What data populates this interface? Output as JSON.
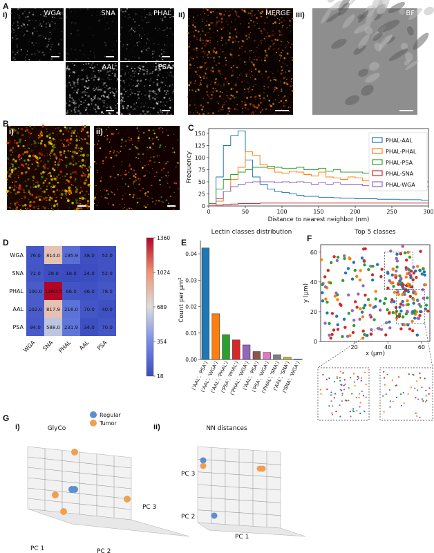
{
  "panel_labels": {
    "A": "A",
    "B": "B",
    "C": "C",
    "D": "D",
    "E": "E",
    "F": "F",
    "G": "G"
  },
  "sub_labels": {
    "a_i": "i)",
    "a_ii": "ii)",
    "a_iii": "iii)",
    "b_i": "i)",
    "b_ii": "ii)",
    "g_i": "i)",
    "g_ii": "ii)"
  },
  "panel_a": {
    "channels": [
      "WGA",
      "SNA",
      "PHAL",
      "AAL",
      "PSA"
    ],
    "merge": "MERGE",
    "bf": "BF"
  },
  "colors": {
    "blue": "#1f77b4",
    "orange": "#ff7f0e",
    "green": "#2ca02c",
    "red": "#d62728",
    "purple": "#9467bd",
    "brown": "#8c564b",
    "pink": "#e377c2",
    "gray": "#7f7f7f",
    "regular": "#5b8fd0",
    "tumor": "#f0a050"
  },
  "chart_data": [
    {
      "id": "C",
      "type": "line",
      "xlabel": "Distance to nearest neighbor (nm)",
      "ylabel": "Frequency",
      "xlim": [
        0,
        300
      ],
      "ylim": [
        0,
        160
      ],
      "xticks": [
        0,
        50,
        100,
        150,
        200,
        250,
        300
      ],
      "yticks": [
        0,
        25,
        50,
        75,
        100,
        125,
        150
      ],
      "legend_position": "right",
      "x": [
        5,
        15,
        25,
        35,
        45,
        55,
        65,
        75,
        85,
        95,
        105,
        115,
        125,
        135,
        145,
        155,
        165,
        175,
        185,
        195,
        205,
        215,
        225,
        235,
        245,
        255,
        265,
        275,
        285,
        295
      ],
      "series": [
        {
          "name": "PHAL-AAL",
          "color": "#1f77b4",
          "values": [
            5,
            60,
            125,
            145,
            155,
            95,
            60,
            45,
            35,
            30,
            28,
            25,
            22,
            20,
            20,
            18,
            18,
            17,
            16,
            16,
            15,
            15,
            15,
            14,
            14,
            14,
            13,
            13,
            13,
            12
          ]
        },
        {
          "name": "PHAL-PHAL",
          "color": "#ff7f0e",
          "values": [
            0,
            10,
            30,
            55,
            80,
            112,
            105,
            85,
            78,
            70,
            68,
            72,
            70,
            65,
            62,
            70,
            60,
            58,
            55,
            60,
            58,
            52,
            55,
            50,
            60,
            55,
            50,
            52,
            55,
            50
          ]
        },
        {
          "name": "PHAL-PSA",
          "color": "#2ca02c",
          "values": [
            5,
            35,
            55,
            65,
            70,
            75,
            80,
            80,
            82,
            80,
            78,
            78,
            80,
            75,
            75,
            78,
            72,
            75,
            70,
            70,
            70,
            68,
            65,
            62,
            60,
            55,
            55,
            52,
            50,
            50
          ]
        },
        {
          "name": "PHAL-SNA",
          "color": "#d62728",
          "values": [
            0,
            2,
            3,
            4,
            5,
            5,
            5,
            6,
            6,
            6,
            6,
            6,
            6,
            6,
            6,
            6,
            6,
            6,
            6,
            6,
            6,
            6,
            6,
            6,
            6,
            6,
            6,
            6,
            6,
            6
          ]
        },
        {
          "name": "PHAL-WGA",
          "color": "#9467bd",
          "values": [
            2,
            15,
            30,
            40,
            45,
            48,
            50,
            50,
            50,
            48,
            50,
            48,
            50,
            48,
            45,
            48,
            45,
            48,
            45,
            45,
            45,
            42,
            45,
            42,
            40,
            42,
            45,
            40,
            42,
            40
          ]
        }
      ]
    },
    {
      "id": "D",
      "type": "heatmap",
      "rows": [
        "WGA",
        "SNA",
        "PHAL",
        "AAL",
        "PSA"
      ],
      "cols": [
        "WGA",
        "SNA",
        "PHAL",
        "AAL",
        "PSA"
      ],
      "values": [
        [
          76.0,
          814.0,
          195.9,
          38.0,
          52.0
        ],
        [
          72.0,
          28.0,
          18.0,
          24.0,
          52.0
        ],
        [
          100.0,
          1360.0,
          66.0,
          46.0,
          78.0
        ],
        [
          102.0,
          817.9,
          216.0,
          70.0,
          40.0
        ],
        [
          94.0,
          588.0,
          231.9,
          34.0,
          70.0
        ]
      ],
      "labels": [
        [
          "76.0",
          "814.0",
          "195.9",
          "38.0",
          "52.0"
        ],
        [
          "72.0",
          "28.0",
          "18.0",
          "24.0",
          "52.0"
        ],
        [
          "100.0",
          "1360.0",
          "66.0",
          "46.0",
          "78.0"
        ],
        [
          "102.0",
          "817.9",
          "216.0",
          "70.0",
          "40.0"
        ],
        [
          "94.0",
          "588.0",
          "231.9",
          "34.0",
          "70.0"
        ]
      ],
      "vmin": 18,
      "vmax": 1360,
      "colorbar_ticks": [
        1360,
        1024,
        689,
        354,
        18
      ]
    },
    {
      "id": "E",
      "type": "bar",
      "title": "Lectin classes distribution",
      "ylabel": "Count per µm²",
      "ylim": [
        0,
        0.045
      ],
      "yticks": [
        "0.00",
        "0.01",
        "0.02",
        "0.03",
        "0.04"
      ],
      "categories": [
        "('AAL', 'PSA')",
        "('AAL', 'WGA')",
        "('AAL', 'PHAL')",
        "('PSA', 'PHAL')",
        "('PHAL', 'WGA')",
        "('AAL', 'PSA')",
        "('PSA', 'WGA')",
        "('PHAL', 'SNA')",
        "('AAL', 'SNA')",
        "('SNA', 'WGA')"
      ],
      "values": [
        0.0422,
        0.0173,
        0.0094,
        0.0074,
        0.0055,
        0.003,
        0.0027,
        0.0018,
        0.0008,
        0.0002
      ],
      "colors": [
        "#1f77b4",
        "#ff7f0e",
        "#2ca02c",
        "#d62728",
        "#9467bd",
        "#8c564b",
        "#e377c2",
        "#7f7f7f",
        "#bcbd22",
        "#17becf"
      ]
    },
    {
      "id": "F",
      "type": "scatter",
      "title": "Top 5 classes",
      "xlabel": "x (μm)",
      "ylabel": "y (μm)",
      "xlim": [
        0,
        65
      ],
      "ylim": [
        0,
        65
      ],
      "xticks": [
        20,
        40,
        60
      ],
      "yticks": [
        0,
        20,
        40,
        60
      ]
    },
    {
      "id": "G_i",
      "type": "scatter",
      "title": "GlyCo",
      "xlabel": "PC 1",
      "ylabel": "PC 2",
      "zlabel": "PC 3",
      "legend": [
        {
          "name": "Regular",
          "color": "#5b8fd0"
        },
        {
          "name": "Tumor",
          "color": "#f0a050"
        }
      ]
    },
    {
      "id": "G_ii",
      "type": "scatter",
      "title": "NN distances",
      "xlabel": "PC 1",
      "ylabel": "PC 2",
      "zlabel": "PC 3"
    }
  ]
}
